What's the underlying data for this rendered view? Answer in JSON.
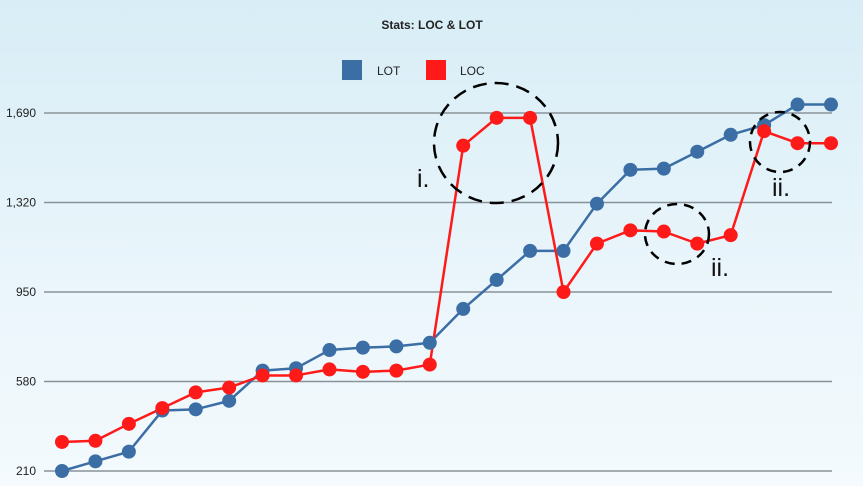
{
  "chart_data": {
    "type": "line",
    "title": "Stats: LOC & LOT",
    "y_ticks": [
      210,
      580,
      950,
      1320,
      1690
    ],
    "y_tick_labels": [
      "210",
      "580",
      "950",
      "1,320",
      "1,690"
    ],
    "ylim": [
      210,
      1690
    ],
    "grid": true,
    "legend_position": "top-center",
    "series": [
      {
        "name": "LOT",
        "color": "#3b6ea5",
        "values": [
          210,
          250,
          290,
          460,
          465,
          500,
          625,
          635,
          710,
          720,
          725,
          740,
          880,
          1000,
          1120,
          1120,
          1315,
          1455,
          1460,
          1530,
          1600,
          1640,
          1725,
          1725
        ]
      },
      {
        "name": "LOC",
        "color": "#ff1a1a",
        "values": [
          330,
          335,
          405,
          470,
          535,
          555,
          605,
          605,
          630,
          620,
          625,
          650,
          1555,
          1670,
          1670,
          950,
          1150,
          1205,
          1200,
          1150,
          1185,
          1615,
          1565,
          1565
        ]
      }
    ],
    "annotations": [
      {
        "label": "i.",
        "index": 12
      },
      {
        "label": "ii.",
        "index": 19
      },
      {
        "label": "ii.",
        "index": 22
      }
    ]
  }
}
